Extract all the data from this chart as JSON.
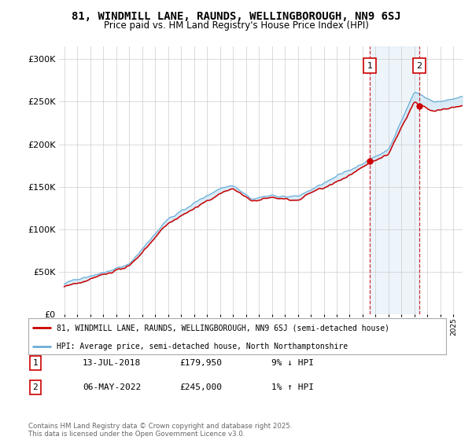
{
  "title": "81, WINDMILL LANE, RAUNDS, WELLINGBOROUGH, NN9 6SJ",
  "subtitle": "Price paid vs. HM Land Registry's House Price Index (HPI)",
  "ylabel_ticks": [
    "£0",
    "£50K",
    "£100K",
    "£150K",
    "£200K",
    "£250K",
    "£300K"
  ],
  "ytick_vals": [
    0,
    50000,
    100000,
    150000,
    200000,
    250000,
    300000
  ],
  "ylim": [
    0,
    315000
  ],
  "hpi_color": "#6baed6",
  "price_color": "#cc0000",
  "shade_color": "#cce5f5",
  "marker1_date": 2018.54,
  "marker1_price": 179950,
  "marker2_date": 2022.35,
  "marker2_price": 245000,
  "legend_line1": "81, WINDMILL LANE, RAUNDS, WELLINGBOROUGH, NN9 6SJ (semi-detached house)",
  "legend_line2": "HPI: Average price, semi-detached house, North Northamptonshire",
  "table_row1": [
    "1",
    "13-JUL-2018",
    "£179,950",
    "9% ↓ HPI"
  ],
  "table_row2": [
    "2",
    "06-MAY-2022",
    "£245,000",
    "1% ↑ HPI"
  ],
  "footnote": "Contains HM Land Registry data © Crown copyright and database right 2025.\nThis data is licensed under the Open Government Licence v3.0.",
  "background_color": "#ffffff",
  "grid_color": "#cccccc"
}
